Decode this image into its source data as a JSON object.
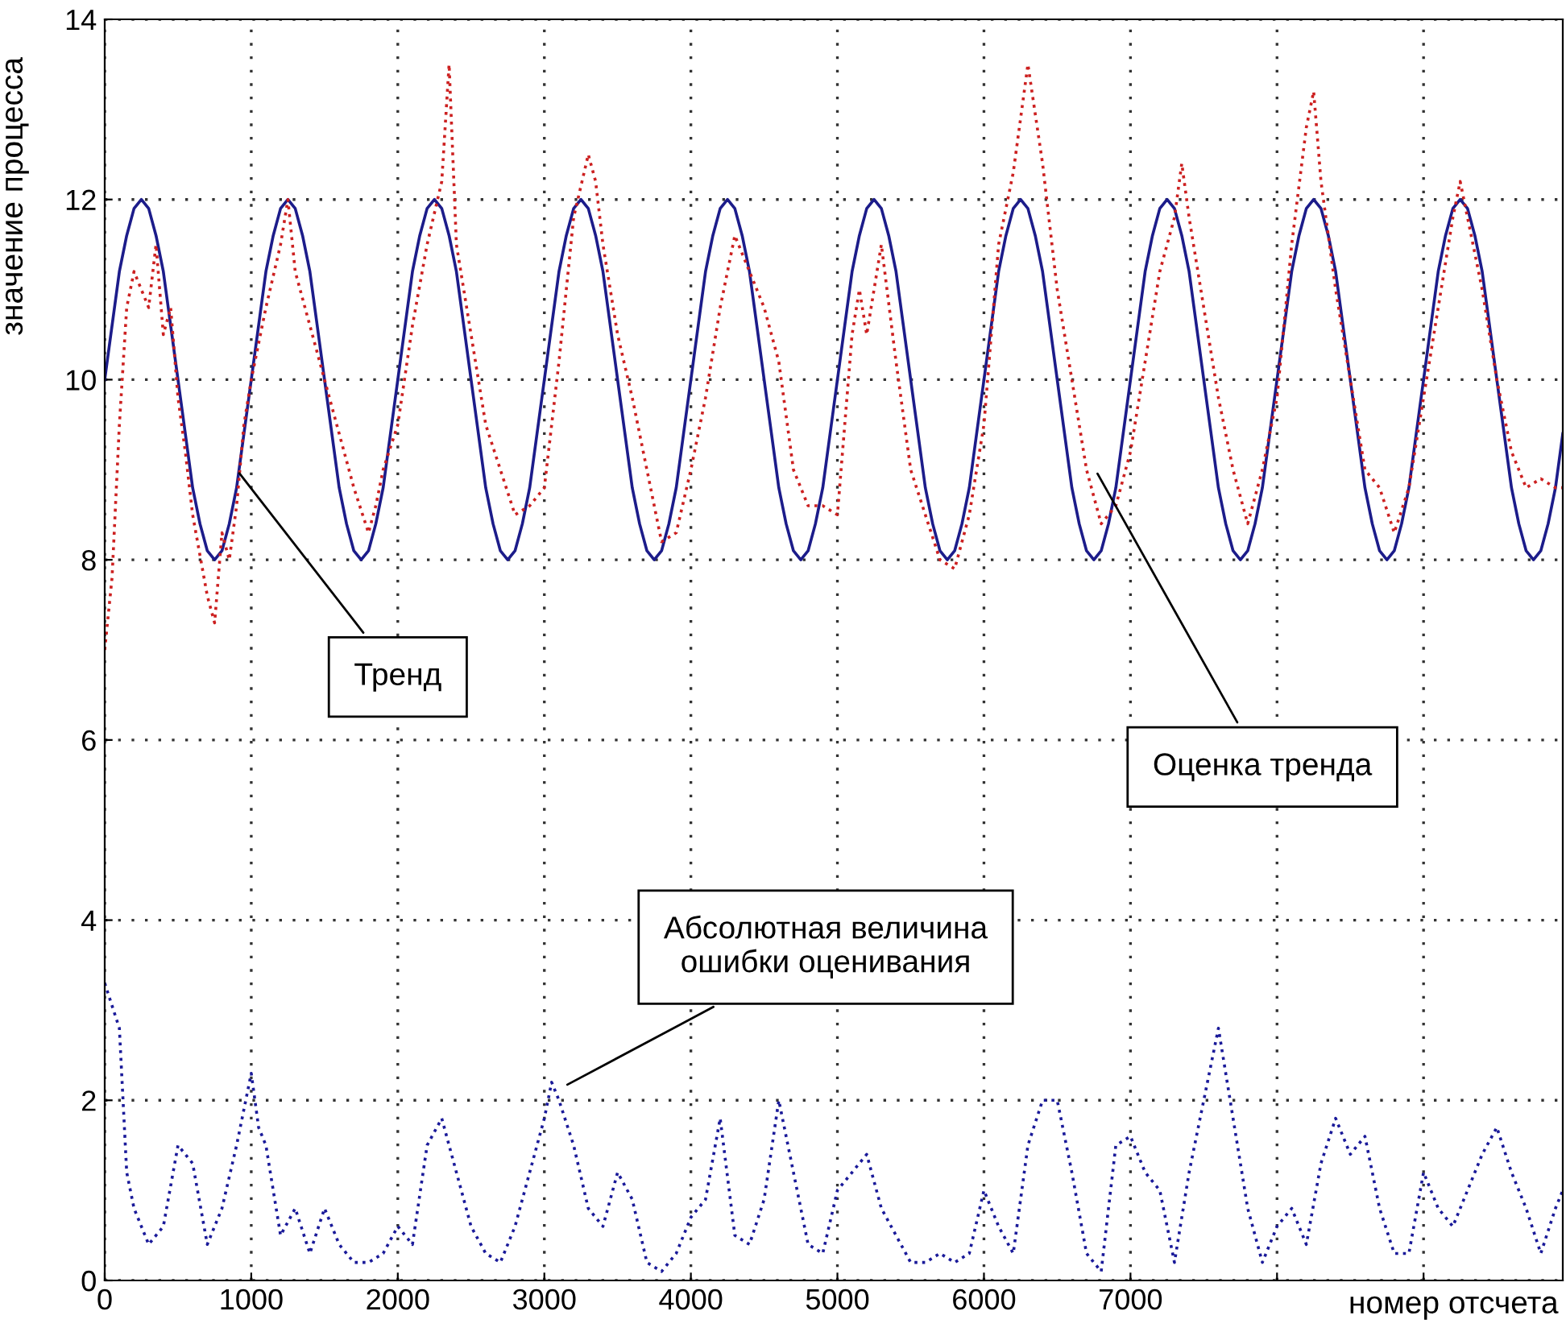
{
  "chart_data": {
    "type": "line",
    "xlabel": "номер отсчета",
    "ylabel": "значение процесса",
    "xlim": [
      0,
      9950
    ],
    "ylim": [
      0,
      14
    ],
    "xticks": [
      0,
      1000,
      2000,
      3000,
      4000,
      5000,
      6000,
      7000,
      {
        "value": 8000,
        "label": null
      },
      {
        "value": 9000,
        "label": null
      }
    ],
    "yticks": [
      0,
      2,
      4,
      6,
      8,
      10,
      12,
      14
    ],
    "grid": true,
    "marker": "none",
    "series": [
      {
        "color": "#1c1c8a",
        "line_style": "solid",
        "x": [
          0,
          50,
          100,
          150,
          200,
          250,
          300,
          350,
          400,
          450,
          500,
          550,
          600,
          650,
          700,
          750,
          800,
          850,
          900,
          950,
          1000,
          1050,
          1100,
          1150,
          1200,
          1250,
          1300,
          1350,
          1400,
          1450,
          1500,
          1550,
          1600,
          1650,
          1700,
          1750,
          1800,
          1850,
          1900,
          1950,
          2000,
          2050,
          2100,
          2150,
          2200,
          2250,
          2300,
          2350,
          2400,
          2450,
          2500,
          2550,
          2600,
          2650,
          2700,
          2750,
          2800,
          2850,
          2900,
          2950,
          3000,
          3050,
          3100,
          3150,
          3200,
          3250,
          3300,
          3350,
          3400,
          3450,
          3500,
          3550,
          3600,
          3650,
          3700,
          3750,
          3800,
          3850,
          3900,
          3950,
          4000,
          4050,
          4100,
          4150,
          4200,
          4250,
          4300,
          4350,
          4400,
          4450,
          4500,
          4550,
          4600,
          4650,
          4700,
          4750,
          4800,
          4850,
          4900,
          4950,
          5000,
          5050,
          5100,
          5150,
          5200,
          5250,
          5300,
          5350,
          5400,
          5450,
          5500,
          5550,
          5600,
          5650,
          5700,
          5750,
          5800,
          5850,
          5900,
          5950,
          6000,
          6050,
          6100,
          6150,
          6200,
          6250,
          6300,
          6350,
          6400,
          6450,
          6500,
          6550,
          6600,
          6650,
          6700,
          6750,
          6800,
          6850,
          6900,
          6950,
          7000,
          7050,
          7100,
          7150,
          7200,
          7250,
          7300,
          7350,
          7400,
          7450,
          7500,
          7550,
          7600,
          7650,
          7700,
          7750,
          7800,
          7850,
          7900,
          7950,
          8000,
          8050,
          8100,
          8150,
          8200,
          8250,
          8300,
          8350,
          8400,
          8450,
          8500,
          8550,
          8600,
          8650,
          8700,
          8750,
          8800,
          8850,
          8900,
          8950,
          9000,
          9050,
          9100,
          9150,
          9200,
          9250,
          9300,
          9350,
          9400,
          9450,
          9500,
          9550,
          9600,
          9650,
          9700,
          9750,
          9800,
          9850,
          9900,
          9950
        ],
        "values": [
          10,
          10.6,
          11.2,
          11.6,
          11.9,
          12,
          11.9,
          11.6,
          11.2,
          10.6,
          10,
          9.4,
          8.8,
          8.4,
          8.1,
          8,
          8.1,
          8.4,
          8.8,
          9.4,
          10,
          10.6,
          11.2,
          11.6,
          11.9,
          12,
          11.9,
          11.6,
          11.2,
          10.6,
          10,
          9.4,
          8.8,
          8.4,
          8.1,
          8,
          8.1,
          8.4,
          8.8,
          9.4,
          10,
          10.6,
          11.2,
          11.6,
          11.9,
          12,
          11.9,
          11.6,
          11.2,
          10.6,
          10,
          9.4,
          8.8,
          8.4,
          8.1,
          8,
          8.1,
          8.4,
          8.8,
          9.4,
          10,
          10.6,
          11.2,
          11.6,
          11.9,
          12,
          11.9,
          11.6,
          11.2,
          10.6,
          10,
          9.4,
          8.8,
          8.4,
          8.1,
          8,
          8.1,
          8.4,
          8.8,
          9.4,
          10,
          10.6,
          11.2,
          11.6,
          11.9,
          12,
          11.9,
          11.6,
          11.2,
          10.6,
          10,
          9.4,
          8.8,
          8.4,
          8.1,
          8,
          8.1,
          8.4,
          8.8,
          9.4,
          10,
          10.6,
          11.2,
          11.6,
          11.9,
          12,
          11.9,
          11.6,
          11.2,
          10.6,
          10,
          9.4,
          8.8,
          8.4,
          8.1,
          8,
          8.1,
          8.4,
          8.8,
          9.4,
          10,
          10.6,
          11.2,
          11.6,
          11.9,
          12,
          11.9,
          11.6,
          11.2,
          10.6,
          10,
          9.4,
          8.8,
          8.4,
          8.1,
          8,
          8.1,
          8.4,
          8.8,
          9.4,
          10,
          10.6,
          11.2,
          11.6,
          11.9,
          12,
          11.9,
          11.6,
          11.2,
          10.6,
          10,
          9.4,
          8.8,
          8.4,
          8.1,
          8,
          8.1,
          8.4,
          8.8,
          9.4,
          10,
          10.6,
          11.2,
          11.6,
          11.9,
          12,
          11.9,
          11.6,
          11.2,
          10.6,
          10,
          9.4,
          8.8,
          8.4,
          8.1,
          8,
          8.1,
          8.4,
          8.8,
          9.4,
          10,
          10.6,
          11.2,
          11.6,
          11.9,
          12,
          11.9,
          11.6,
          11.2,
          10.6,
          10,
          9.4,
          8.8,
          8.4,
          8.1,
          8,
          8.1,
          8.4,
          8.8,
          9.4
        ]
      },
      {
        "color": "#cc2020",
        "line_style": "dotted",
        "x": [
          0,
          50,
          100,
          150,
          200,
          250,
          300,
          350,
          400,
          450,
          500,
          550,
          600,
          700,
          750,
          800,
          850,
          900,
          950,
          1000,
          1100,
          1200,
          1250,
          1300,
          1400,
          1500,
          1600,
          1700,
          1800,
          1850,
          1900,
          2000,
          2100,
          2200,
          2300,
          2350,
          2400,
          2500,
          2600,
          2700,
          2800,
          2900,
          3000,
          3100,
          3200,
          3300,
          3350,
          3400,
          3500,
          3600,
          3700,
          3800,
          3900,
          4000,
          4100,
          4200,
          4300,
          4400,
          4500,
          4600,
          4700,
          4800,
          4900,
          5000,
          5100,
          5150,
          5200,
          5300,
          5400,
          5500,
          5600,
          5700,
          5800,
          5900,
          6000,
          6100,
          6200,
          6300,
          6400,
          6500,
          6600,
          6700,
          6800,
          6900,
          7000,
          7100,
          7200,
          7300,
          7350,
          7400,
          7500,
          7600,
          7700,
          7800,
          7900,
          8000,
          8100,
          8200,
          8250,
          8300,
          8400,
          8500,
          8600,
          8700,
          8800,
          8900,
          9000,
          9100,
          9200,
          9250,
          9300,
          9400,
          9500,
          9600,
          9700,
          9800,
          9900,
          9950
        ],
        "values": [
          7.0,
          7.8,
          9.5,
          10.8,
          11.2,
          11.0,
          10.8,
          11.5,
          10.5,
          10.8,
          9.8,
          9.2,
          8.5,
          7.6,
          7.3,
          8.3,
          8.0,
          8.6,
          9.5,
          10.0,
          10.8,
          11.5,
          12.0,
          11.2,
          10.6,
          10.0,
          9.4,
          8.8,
          8.3,
          8.6,
          9.0,
          9.5,
          10.6,
          11.5,
          12.2,
          13.5,
          11.5,
          10.5,
          9.5,
          9.0,
          8.5,
          8.6,
          8.8,
          10.2,
          11.8,
          12.5,
          12.2,
          11.5,
          10.5,
          9.8,
          9.0,
          8.2,
          8.3,
          9.0,
          9.8,
          10.8,
          11.6,
          11.2,
          10.8,
          10.2,
          9.0,
          8.6,
          8.6,
          8.5,
          10.5,
          11.0,
          10.5,
          11.5,
          10.2,
          9.0,
          8.5,
          8.0,
          7.9,
          8.5,
          9.5,
          11.5,
          12.3,
          13.5,
          12.4,
          11.0,
          10.0,
          9.0,
          8.4,
          8.6,
          9.2,
          10.2,
          11.2,
          11.8,
          12.4,
          11.8,
          10.8,
          9.8,
          9.0,
          8.4,
          9.0,
          9.8,
          11.5,
          12.8,
          13.2,
          12.2,
          11.0,
          10.0,
          9.0,
          8.8,
          8.3,
          8.8,
          9.8,
          10.8,
          11.8,
          12.2,
          11.8,
          11.0,
          10.0,
          9.2,
          8.8,
          8.9,
          8.8,
          8.8
        ]
      },
      {
        "color": "#1a1a99",
        "line_style": "dotted",
        "x": [
          0,
          100,
          150,
          200,
          300,
          400,
          500,
          600,
          700,
          800,
          900,
          1000,
          1050,
          1100,
          1200,
          1300,
          1400,
          1500,
          1600,
          1700,
          1800,
          1900,
          2000,
          2100,
          2200,
          2300,
          2400,
          2500,
          2600,
          2700,
          2800,
          2900,
          3000,
          3050,
          3100,
          3200,
          3300,
          3400,
          3500,
          3600,
          3700,
          3800,
          3900,
          4000,
          4100,
          4200,
          4300,
          4400,
          4500,
          4600,
          4700,
          4800,
          4900,
          5000,
          5100,
          5200,
          5300,
          5400,
          5500,
          5600,
          5700,
          5800,
          5900,
          6000,
          6100,
          6200,
          6300,
          6400,
          6500,
          6600,
          6700,
          6800,
          6900,
          7000,
          7100,
          7200,
          7300,
          7400,
          7500,
          7600,
          7700,
          7800,
          7900,
          8000,
          8100,
          8200,
          8300,
          8400,
          8500,
          8600,
          8700,
          8800,
          8900,
          9000,
          9100,
          9200,
          9300,
          9400,
          9500,
          9600,
          9700,
          9800,
          9900,
          9950
        ],
        "values": [
          3.3,
          2.8,
          1.2,
          0.8,
          0.4,
          0.6,
          1.5,
          1.3,
          0.4,
          0.8,
          1.5,
          2.3,
          1.7,
          1.5,
          0.5,
          0.8,
          0.3,
          0.8,
          0.4,
          0.2,
          0.2,
          0.3,
          0.6,
          0.4,
          1.5,
          1.8,
          1.2,
          0.6,
          0.3,
          0.2,
          0.6,
          1.2,
          1.8,
          2.2,
          2.0,
          1.5,
          0.8,
          0.6,
          1.2,
          0.9,
          0.2,
          0.1,
          0.3,
          0.7,
          0.9,
          1.8,
          0.5,
          0.4,
          0.9,
          2.0,
          1.2,
          0.4,
          0.3,
          1.0,
          1.2,
          1.4,
          0.8,
          0.5,
          0.2,
          0.2,
          0.3,
          0.2,
          0.3,
          1.0,
          0.6,
          0.3,
          1.5,
          2.0,
          2.0,
          1.2,
          0.3,
          0.1,
          1.5,
          1.6,
          1.2,
          1.0,
          0.2,
          1.2,
          2.0,
          2.8,
          1.8,
          0.8,
          0.2,
          0.6,
          0.8,
          0.4,
          1.3,
          1.8,
          1.4,
          1.6,
          0.8,
          0.3,
          0.3,
          1.2,
          0.8,
          0.6,
          1.0,
          1.4,
          1.7,
          1.2,
          0.8,
          0.3,
          0.8,
          1.0
        ]
      }
    ],
    "annotations": [
      {
        "text": "Тренд",
        "x": 900,
        "y": 9.0
      },
      {
        "text": "Оценка тренда",
        "x": 6760,
        "y": 9.0
      },
      {
        "text": "Абсолютная величина\nошибки оценивания",
        "x": 3130,
        "y": 2.15
      }
    ]
  }
}
